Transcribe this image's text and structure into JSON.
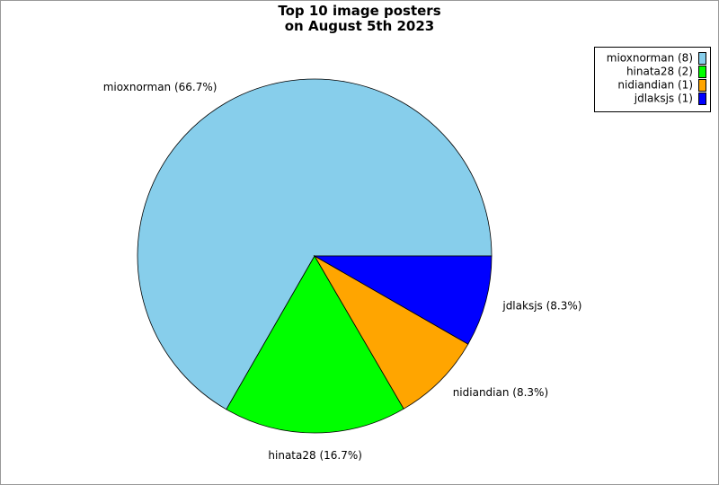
{
  "chart_data": {
    "type": "pie",
    "title": "Top 10 image posters\non August 5th 2023",
    "categories": [
      "mioxnorman (8)",
      "hinata28 (2)",
      "nidiandian (1)",
      "jdlaksjs (1)"
    ],
    "values": [
      66.7,
      16.7,
      8.3,
      8.3
    ],
    "value_labels": [
      "mioxnorman (66.7%)",
      "hinata28 (16.7%)",
      "nidiandian (8.3%)",
      "jdlaksjs (8.3%)"
    ],
    "colors": [
      "#87ceeb",
      "#00ff00",
      "#ffa500",
      "#0000ff"
    ],
    "legend": "upper right"
  }
}
